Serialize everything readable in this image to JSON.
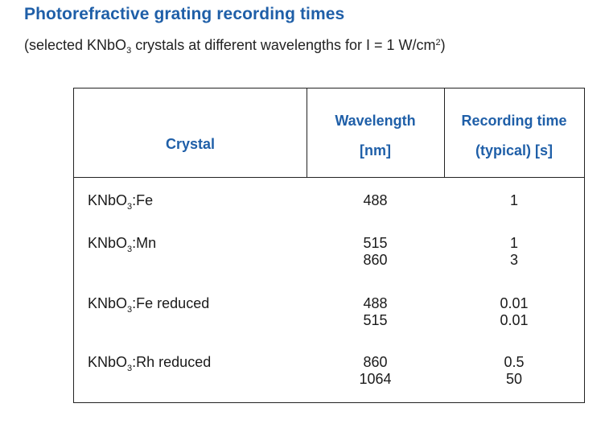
{
  "title": "Photorefractive grating recording times",
  "subtitle": {
    "pre": "(selected KNbO",
    "sub": "3",
    "mid": " crystals at different wavelengths for I = 1 W/cm",
    "sup": "2",
    "post": ")"
  },
  "table": {
    "headers": {
      "crystal": "Crystal",
      "wavelength_l1": "Wavelength",
      "wavelength_l2": "[nm]",
      "recording_l1": "Recording time",
      "recording_l2": "(typical) [s]"
    },
    "rows": [
      {
        "crystal_pre": "KNbO",
        "crystal_sub": "3",
        "crystal_post": ":Fe",
        "wavelengths": [
          "488"
        ],
        "times": [
          "1"
        ]
      },
      {
        "crystal_pre": "KNbO",
        "crystal_sub": "3",
        "crystal_post": ":Mn",
        "wavelengths": [
          "515",
          "860"
        ],
        "times": [
          "1",
          "3"
        ]
      },
      {
        "crystal_pre": "KNbO",
        "crystal_sub": "3",
        "crystal_post": ":Fe reduced",
        "wavelengths": [
          "488",
          "515"
        ],
        "times": [
          "0.01",
          "0.01"
        ]
      },
      {
        "crystal_pre": "KNbO",
        "crystal_sub": "3",
        "crystal_post": ":Rh reduced",
        "wavelengths": [
          "860",
          "1064"
        ],
        "times": [
          "0.5",
          "50"
        ]
      }
    ]
  }
}
